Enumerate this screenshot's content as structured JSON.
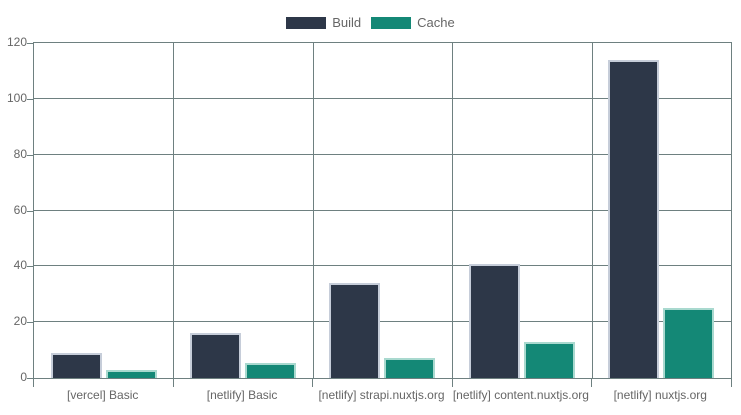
{
  "chart_data": {
    "type": "bar",
    "title": "",
    "categories": [
      "[vercel] Basic",
      "[netlify] Basic",
      "[netlify] strapi.nuxtjs.org",
      "[netlify] content.nuxtjs.org",
      "[netlify] nuxtjs.org"
    ],
    "series": [
      {
        "name": "Build",
        "color": "#2d3748",
        "border_color": "#c6cdd9",
        "values": [
          9,
          16,
          34,
          41,
          114
        ]
      },
      {
        "name": "Cache",
        "color": "#148876",
        "border_color": "#a9d9cf",
        "values": [
          3,
          5.5,
          7,
          13,
          25
        ]
      }
    ],
    "xlabel": "",
    "ylabel": "",
    "ylim": [
      0,
      120
    ],
    "yticks": [
      0,
      20,
      40,
      60,
      80,
      100,
      120
    ],
    "grid": true,
    "legend_position": "top"
  },
  "colors": {
    "grid": "#6e8080",
    "text": "#666666",
    "background": "#ffffff"
  }
}
